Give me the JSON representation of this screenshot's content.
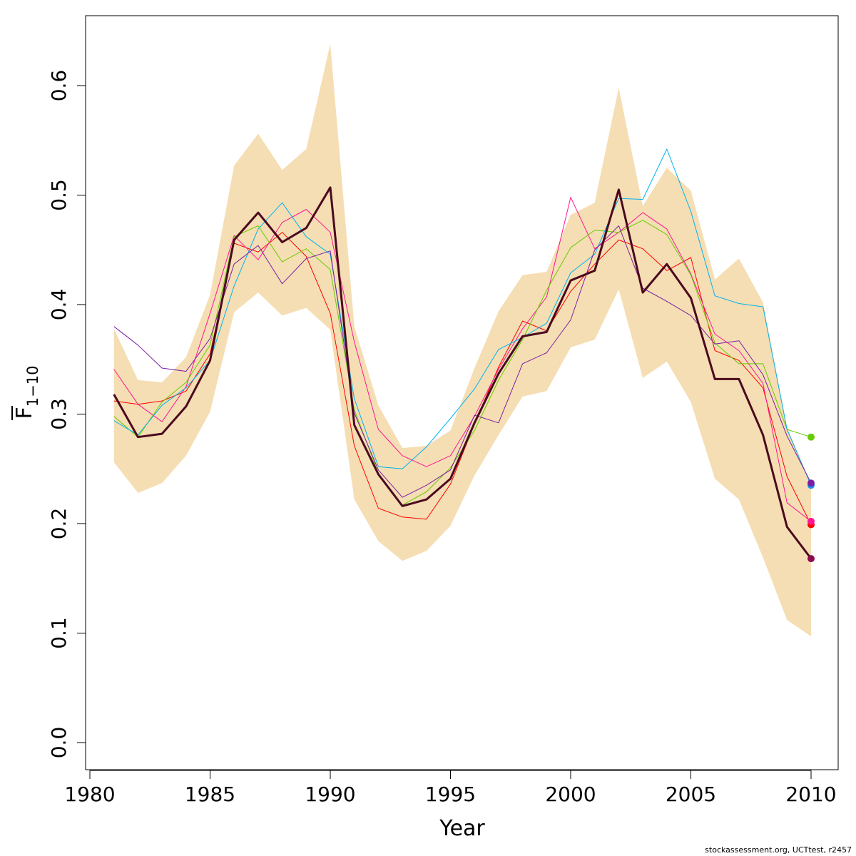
{
  "chart_data": {
    "type": "line",
    "title": "",
    "xlabel": "Year",
    "ylabel_main": "F",
    "ylabel_sub": "1−10",
    "xlim": [
      1980,
      2010
    ],
    "ylim": [
      0.0,
      0.65
    ],
    "xticks": [
      1980,
      1985,
      1990,
      1995,
      2000,
      2005,
      2010
    ],
    "yticks": [
      0.0,
      0.1,
      0.2,
      0.3,
      0.4,
      0.5,
      0.6
    ],
    "ytick_labels": [
      "0.0",
      "0.1",
      "0.2",
      "0.3",
      "0.4",
      "0.5",
      "0.6"
    ],
    "grid": false,
    "band_color": "#f5deb3",
    "band": {
      "x": [
        1981,
        1982,
        1983,
        1984,
        1985,
        1986,
        1987,
        1988,
        1989,
        1990,
        1991,
        1992,
        1993,
        1994,
        1995,
        1996,
        1997,
        1998,
        1999,
        2000,
        2001,
        2002,
        2003,
        2004,
        2005,
        2006,
        2007,
        2008,
        2009,
        2010
      ],
      "upper": [
        0.378,
        0.331,
        0.329,
        0.352,
        0.409,
        0.527,
        0.556,
        0.523,
        0.542,
        0.638,
        0.38,
        0.308,
        0.269,
        0.271,
        0.285,
        0.342,
        0.394,
        0.427,
        0.43,
        0.482,
        0.493,
        0.598,
        0.49,
        0.525,
        0.504,
        0.423,
        0.442,
        0.402,
        0.288,
        0.236
      ],
      "lower": [
        0.256,
        0.228,
        0.237,
        0.262,
        0.302,
        0.393,
        0.411,
        0.39,
        0.397,
        0.377,
        0.222,
        0.184,
        0.166,
        0.175,
        0.198,
        0.244,
        0.281,
        0.316,
        0.321,
        0.361,
        0.368,
        0.414,
        0.333,
        0.348,
        0.311,
        0.241,
        0.222,
        0.169,
        0.112,
        0.097
      ]
    },
    "series": [
      {
        "color": "#4b0a1f",
        "width": 3,
        "x": [
          1981,
          1982,
          1983,
          1984,
          1985,
          1986,
          1987,
          1988,
          1989,
          1990,
          1991,
          1992,
          1993,
          1994,
          1995,
          1996,
          1997,
          1998,
          1999,
          2000,
          2001,
          2002,
          2003,
          2004,
          2005,
          2006,
          2007,
          2008,
          2009,
          2010
        ],
        "values": [
          0.318,
          0.279,
          0.282,
          0.307,
          0.349,
          0.459,
          0.484,
          0.457,
          0.47,
          0.507,
          0.29,
          0.245,
          0.216,
          0.222,
          0.241,
          0.292,
          0.337,
          0.371,
          0.375,
          0.422,
          0.431,
          0.505,
          0.411,
          0.437,
          0.406,
          0.332,
          0.332,
          0.281,
          0.197,
          0.168
        ],
        "end_marker_color": "#8b0a50"
      },
      {
        "color": "#ff0000",
        "width": 1,
        "x": [
          1981,
          1982,
          1983,
          1984,
          1985,
          1986,
          1987,
          1988,
          1989,
          1990,
          1991,
          1992,
          1993,
          1994,
          1995,
          1996,
          1997,
          1998,
          1999,
          2000,
          2001,
          2002,
          2003,
          2004,
          2005,
          2006,
          2007,
          2008,
          2009,
          2010
        ],
        "values": [
          0.312,
          0.309,
          0.312,
          0.321,
          0.355,
          0.456,
          0.448,
          0.466,
          0.444,
          0.392,
          0.271,
          0.214,
          0.206,
          0.204,
          0.236,
          0.291,
          0.343,
          0.385,
          0.376,
          0.412,
          0.437,
          0.459,
          0.451,
          0.431,
          0.443,
          0.358,
          0.349,
          0.324,
          0.243,
          0.199
        ],
        "end_marker_color": "#ff0000"
      },
      {
        "color": "#ff1493",
        "width": 1,
        "x": [
          1981,
          1982,
          1983,
          1984,
          1985,
          1986,
          1987,
          1988,
          1989,
          1990,
          1991,
          1992,
          1993,
          1994,
          1995,
          1996,
          1997,
          1998,
          1999,
          2000,
          2001,
          2002,
          2003,
          2004,
          2005,
          2006,
          2007,
          2008,
          2009,
          2010
        ],
        "values": [
          0.341,
          0.309,
          0.293,
          0.325,
          0.392,
          0.463,
          0.441,
          0.475,
          0.487,
          0.466,
          0.366,
          0.286,
          0.262,
          0.252,
          0.262,
          0.298,
          0.341,
          0.378,
          0.407,
          0.498,
          0.451,
          0.466,
          0.484,
          0.469,
          0.428,
          0.373,
          0.358,
          0.328,
          0.219,
          0.202
        ],
        "end_marker_color": "#ff1493"
      },
      {
        "color": "#66cc00",
        "width": 1,
        "x": [
          1981,
          1982,
          1983,
          1984,
          1985,
          1986,
          1987,
          1988,
          1989,
          1990,
          1991,
          1992,
          1993,
          1994,
          1995,
          1996,
          1997,
          1998,
          1999,
          2000,
          2001,
          2002,
          2003,
          2004,
          2005,
          2006,
          2007,
          2008,
          2009,
          2010
        ],
        "values": [
          0.298,
          0.279,
          0.311,
          0.329,
          0.363,
          0.462,
          0.472,
          0.439,
          0.451,
          0.432,
          0.304,
          0.246,
          0.217,
          0.229,
          0.251,
          0.285,
          0.331,
          0.368,
          0.413,
          0.452,
          0.468,
          0.466,
          0.477,
          0.464,
          0.427,
          0.365,
          0.346,
          0.346,
          0.286,
          0.279
        ],
        "end_marker_color": "#66cc00"
      },
      {
        "color": "#00b2ee",
        "width": 1,
        "x": [
          1981,
          1982,
          1983,
          1984,
          1985,
          1986,
          1987,
          1988,
          1989,
          1990,
          1991,
          1992,
          1993,
          1994,
          1995,
          1996,
          1997,
          1998,
          1999,
          2000,
          2001,
          2002,
          2003,
          2004,
          2005,
          2006,
          2007,
          2008,
          2009,
          2010
        ],
        "values": [
          0.294,
          0.281,
          0.308,
          0.324,
          0.349,
          0.417,
          0.469,
          0.493,
          0.462,
          0.446,
          0.314,
          0.252,
          0.25,
          0.27,
          0.296,
          0.323,
          0.359,
          0.37,
          0.383,
          0.429,
          0.446,
          0.497,
          0.496,
          0.542,
          0.485,
          0.408,
          0.401,
          0.398,
          0.286,
          0.235
        ],
        "end_marker_color": "#1e90ff"
      },
      {
        "color": "#7b1fa2",
        "width": 1,
        "x": [
          1981,
          1982,
          1983,
          1984,
          1985,
          1986,
          1987,
          1988,
          1989,
          1990,
          1991,
          1992,
          1993,
          1994,
          1995,
          1996,
          1997,
          1998,
          1999,
          2000,
          2001,
          2002,
          2003,
          2004,
          2005,
          2006,
          2007,
          2008,
          2009,
          2010
        ],
        "values": [
          0.38,
          0.363,
          0.342,
          0.339,
          0.369,
          0.437,
          0.454,
          0.419,
          0.442,
          0.449,
          0.301,
          0.249,
          0.224,
          0.235,
          0.249,
          0.299,
          0.292,
          0.346,
          0.356,
          0.386,
          0.45,
          0.472,
          0.415,
          0.403,
          0.39,
          0.364,
          0.367,
          0.336,
          0.28,
          0.237
        ],
        "end_marker_color": "#7b1fa2"
      }
    ]
  },
  "footer": {
    "credit": "stockassessment.org, UCTtest, r2457"
  }
}
